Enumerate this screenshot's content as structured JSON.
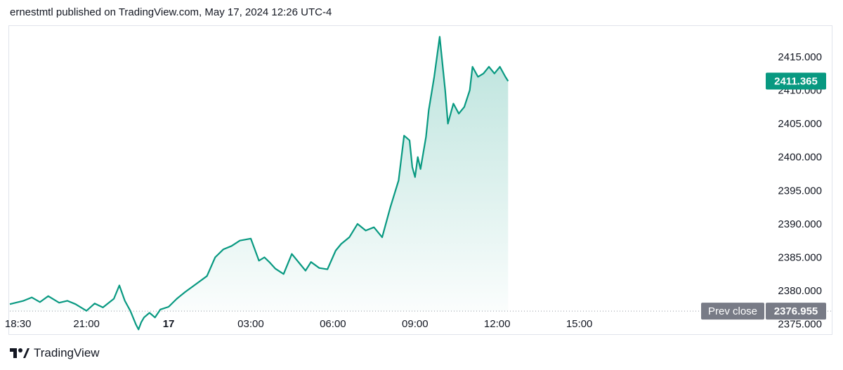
{
  "header": {
    "text": "ernestmtl published on TradingView.com, May 17, 2024 12:26 UTC-4"
  },
  "footer": {
    "brand": "TradingView",
    "logo_icon": "tradingview-logo-icon"
  },
  "colors": {
    "line": "#089981",
    "fill": "#089981",
    "grid_border": "#e0e3eb",
    "prev_close_badge": "#787b86",
    "last_badge": "#089981"
  },
  "chart_data": {
    "type": "area",
    "ylim": [
      2373.5,
      2419.5
    ],
    "x_range_hours": [
      -5.8,
      19.5
    ],
    "y_ticks": [
      "2415.000",
      "2410.000",
      "2405.000",
      "2400.000",
      "2395.000",
      "2390.000",
      "2385.000",
      "2380.000",
      "2375.000"
    ],
    "y_tick_values": [
      2415,
      2410,
      2405,
      2400,
      2395,
      2390,
      2385,
      2380,
      2375
    ],
    "x_ticks": [
      "18:30",
      "21:00",
      "17",
      "03:00",
      "06:00",
      "09:00",
      "12:00",
      "15:00"
    ],
    "x_tick_values": [
      -5.5,
      -3,
      0,
      3,
      6,
      9,
      12,
      15
    ],
    "prev_close": {
      "label": "Prev close",
      "value": "2376.955",
      "y": 2376.955
    },
    "last": {
      "value": "2411.365",
      "y": 2411.365
    },
    "series": [
      {
        "x": [
          -5.8,
          -5.3,
          -5.0,
          -4.7,
          -4.4,
          -4.0,
          -3.7,
          -3.4,
          -3.0,
          -2.7,
          -2.4,
          -2.0,
          -1.8,
          -1.6,
          -1.4,
          -1.2,
          -1.1,
          -1.0,
          -0.9,
          -0.7,
          -0.5,
          -0.3,
          0.0,
          0.3,
          0.6,
          1.0,
          1.4,
          1.7,
          2.0,
          2.3,
          2.6,
          3.0,
          3.3,
          3.5,
          3.7,
          3.9,
          4.2,
          4.5,
          4.8,
          5.0,
          5.2,
          5.5,
          5.8,
          6.1,
          6.3,
          6.6,
          6.9,
          7.2,
          7.5,
          7.8,
          8.1,
          8.4,
          8.6,
          8.8,
          8.9,
          9.0,
          9.1,
          9.2,
          9.4,
          9.5,
          9.7,
          9.9,
          10.0,
          10.1,
          10.2,
          10.4,
          10.6,
          10.8,
          11.0,
          11.1,
          11.3,
          11.5,
          11.7,
          11.9,
          12.1,
          12.3,
          12.4
        ],
        "values": [
          2378.0,
          2378.5,
          2379.0,
          2378.3,
          2379.2,
          2378.2,
          2378.5,
          2378.0,
          2377.0,
          2378.1,
          2377.5,
          2378.8,
          2380.8,
          2378.5,
          2377.0,
          2375.0,
          2374.2,
          2375.3,
          2376.0,
          2376.7,
          2376.0,
          2377.2,
          2377.6,
          2378.8,
          2379.8,
          2381.0,
          2382.2,
          2385.0,
          2386.2,
          2386.7,
          2387.5,
          2387.8,
          2384.5,
          2385.0,
          2384.2,
          2383.3,
          2382.5,
          2385.5,
          2384.0,
          2383.0,
          2384.3,
          2383.4,
          2383.2,
          2386.0,
          2387.0,
          2388.0,
          2390.0,
          2389.0,
          2389.5,
          2388.0,
          2392.5,
          2396.5,
          2403.2,
          2402.5,
          2398.5,
          2397.0,
          2400.0,
          2398.2,
          2403.0,
          2407.0,
          2412.0,
          2418.0,
          2414.0,
          2410.0,
          2405.0,
          2408.0,
          2406.5,
          2407.5,
          2410.0,
          2413.5,
          2412.0,
          2412.5,
          2413.5,
          2412.5,
          2413.5,
          2412.0,
          2411.365
        ]
      }
    ]
  }
}
